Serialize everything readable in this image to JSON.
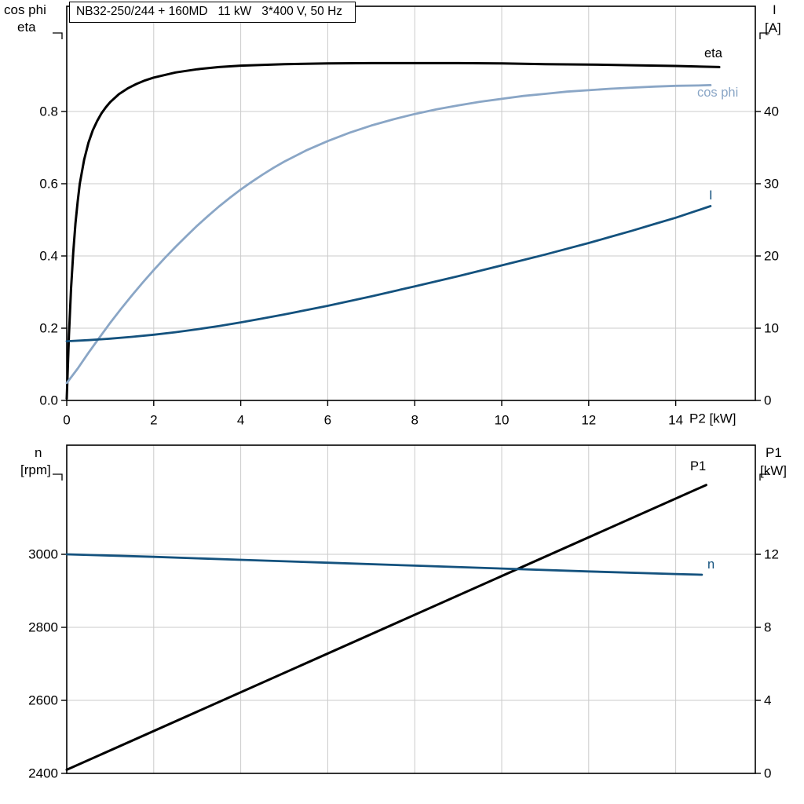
{
  "title": {
    "text": "NB32-250/244 + 160MD   11 kW   3*400 V, 50 Hz"
  },
  "colors": {
    "black_curve": "#000000",
    "light_blue_curve": "#8aa6c6",
    "dark_blue_curve": "#14527e",
    "grid": "#cbcbcb",
    "axis": "#000000",
    "background": "#ffffff"
  },
  "top_chart_labels": {
    "left_line1": "cos phi",
    "left_line2": "eta",
    "right_line1": "I",
    "right_line2": "[A]"
  },
  "bottom_chart_labels": {
    "left_line1": "n",
    "left_line2": "[rpm]",
    "right_line1": "P1",
    "right_line2": "[kW]"
  },
  "chart_data": [
    {
      "id": "top",
      "type": "line",
      "title": "NB32-250/244 + 160MD   11 kW   3*400 V, 50 Hz",
      "xlabel": "P2 [kW]",
      "xlim": [
        0,
        15.83
      ],
      "x_ticks": [
        0,
        2,
        4,
        6,
        8,
        10,
        12,
        14
      ],
      "x_tick_labels": [
        "0",
        "2",
        "4",
        "6",
        "8",
        "10",
        "12",
        "14"
      ],
      "grid": true,
      "legend_position": "curve-end-labels",
      "left_axis": {
        "label": "cos phi / eta",
        "lim": [
          0,
          1.0913
        ],
        "ticks": [
          0,
          0.2,
          0.4,
          0.6,
          0.8
        ],
        "tick_labels": [
          "0.0",
          "0.2",
          "0.4",
          "0.6",
          "0.8"
        ]
      },
      "right_axis": {
        "label": "I [A]",
        "lim": [
          0,
          54.57
        ],
        "ticks": [
          0,
          10,
          20,
          30,
          40
        ],
        "tick_labels": [
          "0",
          "10",
          "20",
          "30",
          "40"
        ]
      },
      "series": [
        {
          "name": "eta",
          "axis": "left",
          "color_key": "black_curve",
          "width": 3,
          "points": [
            [
              0,
              0.005
            ],
            [
              0.05,
              0.18
            ],
            [
              0.1,
              0.31
            ],
            [
              0.15,
              0.41
            ],
            [
              0.2,
              0.49
            ],
            [
              0.25,
              0.55
            ],
            [
              0.3,
              0.6
            ],
            [
              0.4,
              0.667
            ],
            [
              0.5,
              0.714
            ],
            [
              0.6,
              0.748
            ],
            [
              0.7,
              0.774
            ],
            [
              0.8,
              0.795
            ],
            [
              0.9,
              0.812
            ],
            [
              1,
              0.826
            ],
            [
              1.2,
              0.848
            ],
            [
              1.4,
              0.864
            ],
            [
              1.6,
              0.876
            ],
            [
              1.8,
              0.886
            ],
            [
              2,
              0.894
            ],
            [
              2.5,
              0.908
            ],
            [
              3,
              0.917
            ],
            [
              3.5,
              0.923
            ],
            [
              4,
              0.927
            ],
            [
              5,
              0.931
            ],
            [
              6,
              0.933
            ],
            [
              7,
              0.934
            ],
            [
              8,
              0.934
            ],
            [
              9,
              0.934
            ],
            [
              10,
              0.933
            ],
            [
              11,
              0.931
            ],
            [
              12,
              0.93
            ],
            [
              13,
              0.928
            ],
            [
              14,
              0.926
            ],
            [
              15,
              0.923
            ]
          ]
        },
        {
          "name": "cos phi",
          "axis": "left",
          "color_key": "light_blue_curve",
          "width": 2.8,
          "points": [
            [
              0,
              0.048
            ],
            [
              0.25,
              0.088
            ],
            [
              0.5,
              0.132
            ],
            [
              0.75,
              0.174
            ],
            [
              1,
              0.215
            ],
            [
              1.25,
              0.254
            ],
            [
              1.5,
              0.291
            ],
            [
              1.75,
              0.327
            ],
            [
              2,
              0.361
            ],
            [
              2.25,
              0.394
            ],
            [
              2.5,
              0.425
            ],
            [
              2.75,
              0.455
            ],
            [
              3,
              0.484
            ],
            [
              3.25,
              0.511
            ],
            [
              3.5,
              0.537
            ],
            [
              3.75,
              0.561
            ],
            [
              4,
              0.584
            ],
            [
              4.25,
              0.605
            ],
            [
              4.5,
              0.625
            ],
            [
              4.75,
              0.644
            ],
            [
              5,
              0.661
            ],
            [
              5.5,
              0.692
            ],
            [
              6,
              0.718
            ],
            [
              6.5,
              0.741
            ],
            [
              7,
              0.761
            ],
            [
              7.5,
              0.778
            ],
            [
              8,
              0.793
            ],
            [
              8.5,
              0.806
            ],
            [
              9,
              0.817
            ],
            [
              9.5,
              0.827
            ],
            [
              10,
              0.835
            ],
            [
              10.5,
              0.843
            ],
            [
              11,
              0.849
            ],
            [
              11.5,
              0.855
            ],
            [
              12,
              0.859
            ],
            [
              12.5,
              0.863
            ],
            [
              13,
              0.866
            ],
            [
              13.5,
              0.869
            ],
            [
              14,
              0.871
            ],
            [
              14.5,
              0.872
            ],
            [
              14.8,
              0.873
            ]
          ]
        },
        {
          "name": "I",
          "axis": "right",
          "color_key": "dark_blue_curve",
          "width": 2.8,
          "points": [
            [
              0,
              8.2
            ],
            [
              0.5,
              8.35
            ],
            [
              1,
              8.55
            ],
            [
              1.5,
              8.8
            ],
            [
              2,
              9.1
            ],
            [
              2.5,
              9.45
            ],
            [
              3,
              9.85
            ],
            [
              3.5,
              10.3
            ],
            [
              4,
              10.8
            ],
            [
              4.5,
              11.35
            ],
            [
              5,
              11.9
            ],
            [
              5.5,
              12.5
            ],
            [
              6,
              13.1
            ],
            [
              6.5,
              13.75
            ],
            [
              7,
              14.4
            ],
            [
              7.5,
              15.1
            ],
            [
              8,
              15.8
            ],
            [
              8.5,
              16.5
            ],
            [
              9,
              17.2
            ],
            [
              9.5,
              17.95
            ],
            [
              10,
              18.7
            ],
            [
              10.5,
              19.45
            ],
            [
              11,
              20.2
            ],
            [
              11.5,
              21.0
            ],
            [
              12,
              21.8
            ],
            [
              12.5,
              22.65
            ],
            [
              13,
              23.5
            ],
            [
              13.5,
              24.4
            ],
            [
              14,
              25.3
            ],
            [
              14.5,
              26.3
            ],
            [
              14.8,
              26.9
            ]
          ]
        }
      ]
    },
    {
      "id": "bottom",
      "type": "line",
      "title": "",
      "xlabel": "",
      "xlim": [
        0,
        15.83
      ],
      "x_ticks": [
        0,
        2,
        4,
        6,
        8,
        10,
        12,
        14
      ],
      "x_tick_labels": [],
      "grid": true,
      "legend_position": "curve-end-labels",
      "left_axis": {
        "label": "n [rpm]",
        "lim": [
          2400,
          3298.9
        ],
        "ticks": [
          2400,
          2600,
          2800,
          3000
        ],
        "tick_labels": [
          "2400",
          "2600",
          "2800",
          "3000"
        ]
      },
      "right_axis": {
        "label": "P1 [kW]",
        "lim": [
          0,
          17.98
        ],
        "ticks": [
          0,
          4,
          8,
          12
        ],
        "tick_labels": [
          "0",
          "4",
          "8",
          "12"
        ]
      },
      "series": [
        {
          "name": "P1",
          "axis": "right",
          "color_key": "black_curve",
          "width": 3,
          "points": [
            [
              0,
              0.2
            ],
            [
              14.7,
              15.8
            ]
          ]
        },
        {
          "name": "n",
          "axis": "left",
          "color_key": "dark_blue_curve",
          "width": 2.8,
          "points": [
            [
              0,
              3000
            ],
            [
              2,
              2993
            ],
            [
              4,
              2985
            ],
            [
              6,
              2977
            ],
            [
              8,
              2969
            ],
            [
              10,
              2961
            ],
            [
              12,
              2953
            ],
            [
              14,
              2946
            ],
            [
              14.6,
              2944
            ]
          ]
        }
      ]
    }
  ]
}
